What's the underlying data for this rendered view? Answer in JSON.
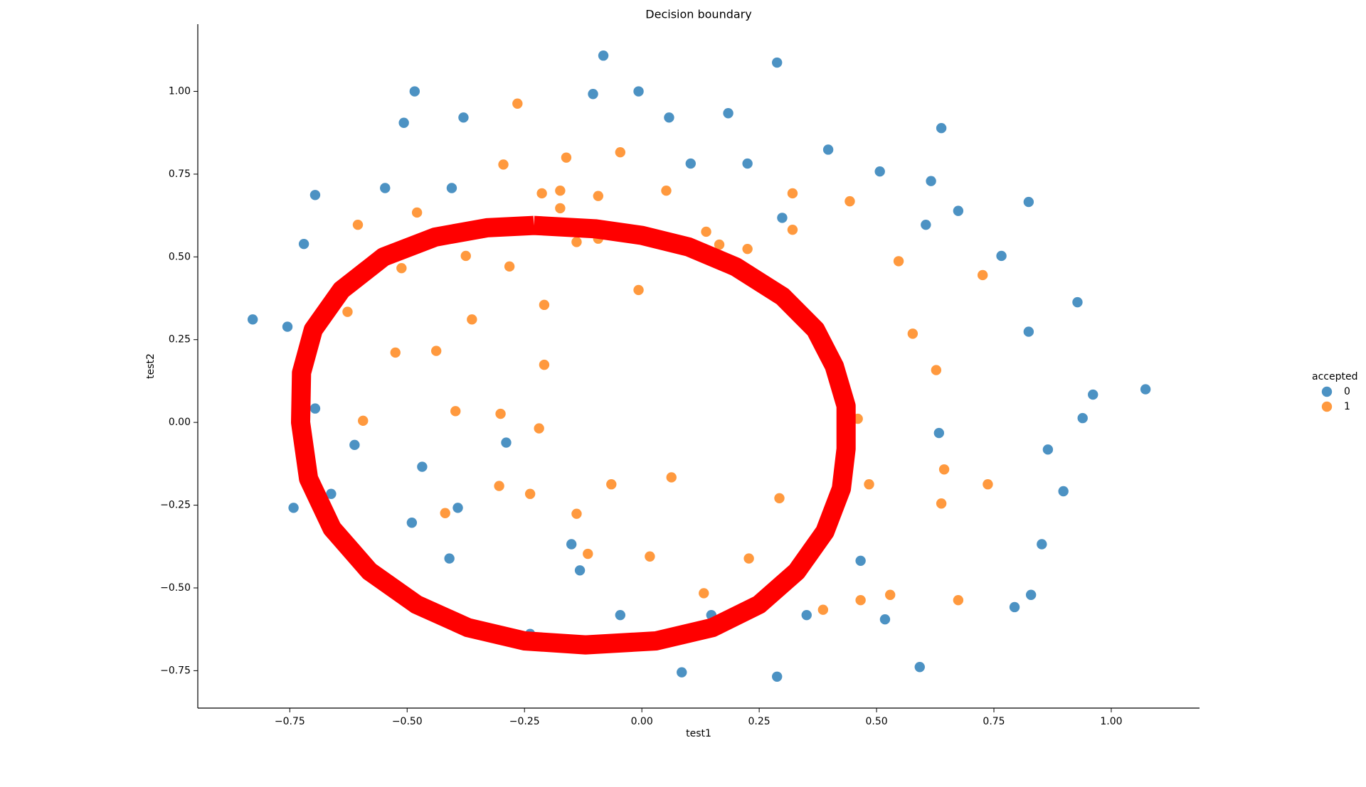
{
  "chart_data": {
    "type": "scatter",
    "title": "Decision boundary",
    "x_label": "test1",
    "y_label": "test2",
    "legend_title": "accepted",
    "legend_position": "right",
    "grid": false,
    "xlim": [
      -0.946,
      1.188
    ],
    "ylim": [
      -0.863,
      1.203
    ],
    "xticks": [
      {
        "value": -0.75,
        "label": "−0.75"
      },
      {
        "value": -0.5,
        "label": "−0.50"
      },
      {
        "value": -0.25,
        "label": "−0.25"
      },
      {
        "value": 0,
        "label": "0.00"
      },
      {
        "value": 0.25,
        "label": "0.25"
      },
      {
        "value": 0.5,
        "label": "0.50"
      },
      {
        "value": 0.75,
        "label": "0.75"
      },
      {
        "value": 1,
        "label": "1.00"
      }
    ],
    "yticks": [
      {
        "value": -0.75,
        "label": "−0.75"
      },
      {
        "value": -0.5,
        "label": "−0.50"
      },
      {
        "value": -0.25,
        "label": "−0.25"
      },
      {
        "value": 0,
        "label": "0.00"
      },
      {
        "value": 0.25,
        "label": "0.25"
      },
      {
        "value": 0.5,
        "label": "0.50"
      },
      {
        "value": 0.75,
        "label": "0.75"
      },
      {
        "value": 1,
        "label": "1.00"
      }
    ],
    "series": [
      {
        "name": "0",
        "color": "#1f77b4",
        "x": [
          -0.082,
          0.288,
          -0.484,
          -0.104,
          -0.007,
          -0.507,
          -0.38,
          0.058,
          0.184,
          0.638,
          0.397,
          0.507,
          0.616,
          -0.696,
          -0.547,
          -0.405,
          0.104,
          0.225,
          0.824,
          0.674,
          0.299,
          0.605,
          -0.72,
          0.766,
          0.928,
          -0.829,
          -0.755,
          0.824,
          0.961,
          1.073,
          0.939,
          -0.696,
          0.633,
          -0.612,
          -0.289,
          0.865,
          -0.468,
          -0.726,
          -0.662,
          0.898,
          -0.742,
          -0.392,
          -0.49,
          -0.15,
          0.852,
          -0.41,
          -0.132,
          0.466,
          0.829,
          0.794,
          -0.046,
          0.148,
          0.351,
          0.518,
          -0.238,
          0.085,
          0.288,
          0.592
        ],
        "y": [
          1.108,
          1.087,
          1.0,
          0.992,
          1.0,
          0.905,
          0.921,
          0.921,
          0.934,
          0.889,
          0.824,
          0.758,
          0.729,
          0.687,
          0.708,
          0.708,
          0.782,
          0.782,
          0.666,
          0.639,
          0.618,
          0.597,
          0.539,
          0.503,
          0.363,
          0.311,
          0.289,
          0.274,
          0.084,
          0.1,
          0.013,
          0.042,
          -0.032,
          -0.068,
          -0.061,
          -0.082,
          -0.134,
          -0.079,
          -0.216,
          -0.208,
          -0.258,
          -0.258,
          -0.303,
          -0.368,
          -0.368,
          -0.411,
          -0.447,
          -0.418,
          -0.521,
          -0.558,
          -0.582,
          -0.582,
          -0.582,
          -0.595,
          -0.639,
          -0.755,
          -0.768,
          -0.739
        ]
      },
      {
        "name": "1",
        "color": "#ff7f0e",
        "x": [
          -0.265,
          -0.295,
          -0.161,
          -0.046,
          -0.479,
          -0.213,
          -0.174,
          -0.093,
          0.052,
          0.321,
          0.443,
          -0.174,
          -0.605,
          0.137,
          0.321,
          -0.139,
          -0.093,
          0.165,
          0.225,
          -0.375,
          -0.512,
          -0.282,
          0.547,
          0.726,
          -0.007,
          -0.627,
          -0.208,
          -0.362,
          0.577,
          -0.525,
          -0.438,
          -0.208,
          0.627,
          -0.397,
          -0.301,
          -0.594,
          -0.219,
          0.46,
          0.644,
          -0.304,
          -0.065,
          0.063,
          0.484,
          0.737,
          -0.238,
          -0.139,
          -0.419,
          0.293,
          0.638,
          -0.115,
          0.017,
          0.228,
          0.132,
          0.386,
          0.466,
          0.529,
          0.674
        ],
        "y": [
          0.963,
          0.779,
          0.8,
          0.816,
          0.634,
          0.692,
          0.7,
          0.684,
          0.7,
          0.692,
          0.668,
          0.647,
          0.597,
          0.576,
          0.582,
          0.545,
          0.555,
          0.537,
          0.524,
          0.503,
          0.466,
          0.471,
          0.487,
          0.445,
          0.4,
          0.334,
          0.355,
          0.311,
          0.268,
          0.211,
          0.216,
          0.174,
          0.158,
          0.034,
          0.026,
          0.005,
          -0.018,
          0.011,
          -0.142,
          -0.192,
          -0.187,
          -0.166,
          -0.187,
          -0.187,
          -0.216,
          -0.276,
          -0.274,
          -0.229,
          -0.245,
          -0.397,
          -0.405,
          -0.411,
          -0.516,
          -0.566,
          -0.537,
          -0.521,
          -0.537
        ]
      }
    ],
    "boundary": {
      "color": "#ff0000",
      "x": [
        -0.23,
        -0.1,
        0.0,
        0.1,
        0.2,
        0.3,
        0.37,
        0.41,
        0.435,
        0.435,
        0.425,
        0.39,
        0.33,
        0.25,
        0.15,
        0.03,
        -0.12,
        -0.25,
        -0.37,
        -0.48,
        -0.58,
        -0.66,
        -0.71,
        -0.727,
        -0.725,
        -0.7,
        -0.64,
        -0.55,
        -0.44,
        -0.33,
        -0.23
      ],
      "y": [
        0.595,
        0.585,
        0.565,
        0.53,
        0.47,
        0.38,
        0.28,
        0.17,
        0.05,
        -0.08,
        -0.2,
        -0.33,
        -0.45,
        -0.55,
        -0.62,
        -0.66,
        -0.672,
        -0.66,
        -0.62,
        -0.55,
        -0.45,
        -0.32,
        -0.17,
        0.0,
        0.15,
        0.28,
        0.4,
        0.5,
        0.56,
        0.588,
        0.595
      ]
    }
  }
}
